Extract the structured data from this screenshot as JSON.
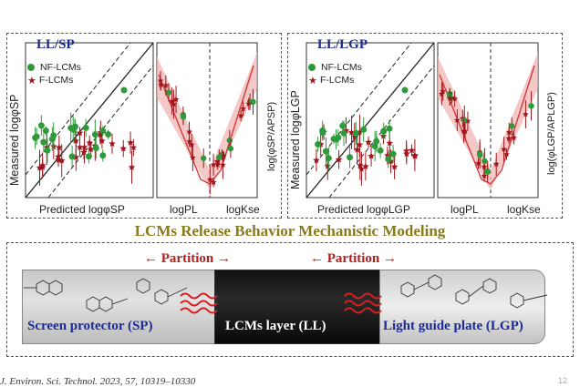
{
  "left_panel": {
    "title": "LL/SP",
    "ylabel": "Measured logφSP",
    "xlabel": "Predicted logφSP",
    "right_ylabel": "log(φSP/APSP)",
    "x_left": "logPL",
    "x_right": "logKse",
    "legend_nf": "NF-LCMs",
    "legend_f": "F-LCMs"
  },
  "right_panel": {
    "title": "LL/LGP",
    "ylabel": "Measured logφLGP",
    "xlabel": "Predicted logφLGP",
    "right_ylabel": "log(φLGP/APLGP)",
    "x_left": "logPL",
    "x_right": "logKse",
    "legend_nf": "NF-LCMs",
    "legend_f": "F-LCMs"
  },
  "banner": "LCMs Release Behavior Mechanistic Modeling",
  "partition_left": "← Partition →",
  "partition_right": "← Partition →",
  "layers": {
    "sp": "Screen protector (SP)",
    "ll": "LCMs layer (LL)",
    "lgp": "Light guide plate (LGP)"
  },
  "citation": "J. Environ. Sci. Technol. 2023, 57, 10319–10330",
  "page_number": "12",
  "colors": {
    "nf": "#2e9a3a",
    "f": "#a0161c",
    "band": "#f2b5b5",
    "title": "#1a2a8a",
    "banner": "#8a7a1a",
    "arrow": "#b81c1c"
  }
}
